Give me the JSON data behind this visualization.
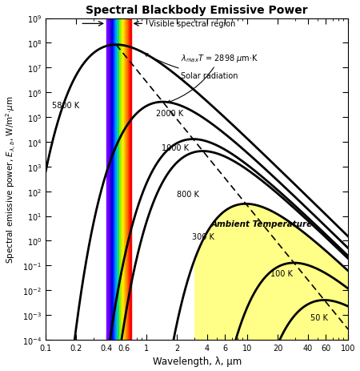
{
  "title": "Spectral Blackbody Emissive Power",
  "xlabel": "Wavelength, λ, μm",
  "ylabel": "Spectral emissive power, Eλ,b, W/m²·μm",
  "xlim": [
    0.1,
    100
  ],
  "ylim_min": 0.0001,
  "ylim_max": 1000000000.0,
  "temperatures": [
    5800,
    2000,
    1000,
    800,
    300,
    100,
    50
  ],
  "visible_min": 0.4,
  "visible_max": 0.7,
  "lambda_max_T": 2898,
  "background_color": "#ffffff",
  "line_color": "#000000",
  "ambient_fill_color": "#ffff88",
  "vis_colors": [
    "#8000ff",
    "#6600ff",
    "#4400ff",
    "#2200cc",
    "#0000ff",
    "#0055ff",
    "#0099ff",
    "#00cccc",
    "#00dd88",
    "#88ee00",
    "#ccee00",
    "#ffee00",
    "#ffcc00",
    "#ffaa00",
    "#ff7700",
    "#ff4400",
    "#ff0000"
  ],
  "xticks": [
    0.1,
    0.2,
    0.4,
    0.6,
    1,
    2,
    4,
    6,
    10,
    20,
    40,
    60,
    100
  ],
  "ytick_exponents": [
    -4,
    -3,
    -2,
    -1,
    0,
    1,
    2,
    3,
    4,
    5,
    6,
    7,
    8,
    9
  ]
}
